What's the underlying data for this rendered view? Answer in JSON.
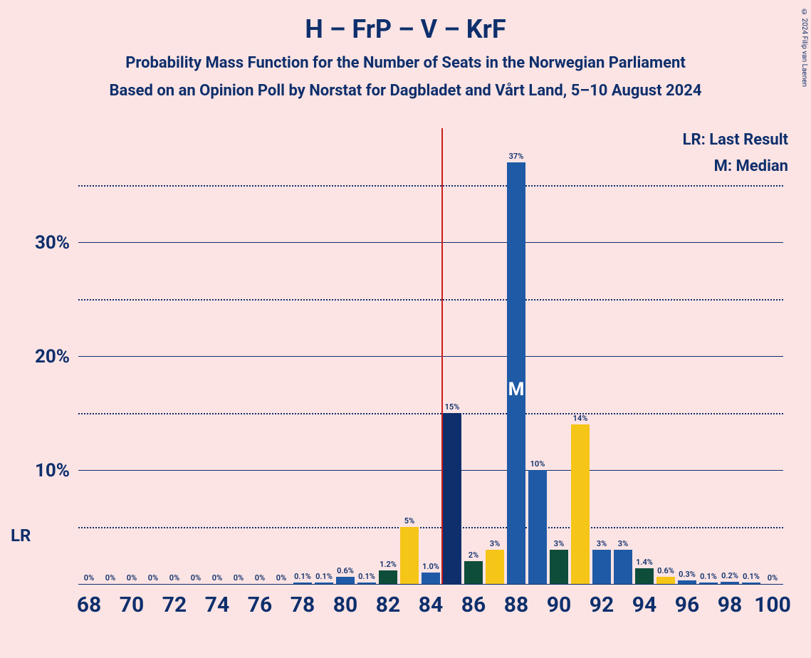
{
  "title": "H – FrP – V – KrF",
  "subtitle1": "Probability Mass Function for the Number of Seats in the Norwegian Parliament",
  "subtitle2": "Based on an Opinion Poll by Norstat for Dagbladet and Vårt Land, 5–10 August 2024",
  "credit": "© 2024 Filip van Laenen",
  "legend": {
    "lr": "LR: Last Result",
    "m": "M: Median"
  },
  "chart": {
    "type": "bar",
    "background_color": "#fce4e4",
    "text_color": "#0e2f6c",
    "lr_line_color": "#c81e1e",
    "lr_position": 68,
    "median_position": 88,
    "ymax": 40,
    "y_major_ticks": [
      10,
      20,
      30
    ],
    "y_minor_ticks": [
      5,
      15,
      25,
      35
    ],
    "x_range": [
      68,
      100
    ],
    "x_ticks": [
      68,
      70,
      72,
      74,
      76,
      78,
      80,
      82,
      84,
      86,
      88,
      90,
      92,
      94,
      96,
      98,
      100
    ],
    "colors": {
      "blue": "#1f5aa6",
      "darkblue": "#0e2f6c",
      "green": "#0e4d3a",
      "yellow": "#f5c518"
    },
    "bars": [
      {
        "x": 68,
        "value": 0,
        "label": "0%",
        "color": "blue"
      },
      {
        "x": 69,
        "value": 0,
        "label": "0%",
        "color": "blue"
      },
      {
        "x": 70,
        "value": 0,
        "label": "0%",
        "color": "blue"
      },
      {
        "x": 71,
        "value": 0,
        "label": "0%",
        "color": "blue"
      },
      {
        "x": 72,
        "value": 0,
        "label": "0%",
        "color": "blue"
      },
      {
        "x": 73,
        "value": 0,
        "label": "0%",
        "color": "blue"
      },
      {
        "x": 74,
        "value": 0,
        "label": "0%",
        "color": "blue"
      },
      {
        "x": 75,
        "value": 0,
        "label": "0%",
        "color": "blue"
      },
      {
        "x": 76,
        "value": 0,
        "label": "0%",
        "color": "blue"
      },
      {
        "x": 77,
        "value": 0,
        "label": "0%",
        "color": "blue"
      },
      {
        "x": 78,
        "value": 0.1,
        "label": "0.1%",
        "color": "blue"
      },
      {
        "x": 79,
        "value": 0.1,
        "label": "0.1%",
        "color": "blue"
      },
      {
        "x": 80,
        "value": 0.6,
        "label": "0.6%",
        "color": "blue"
      },
      {
        "x": 81,
        "value": 0.1,
        "label": "0.1%",
        "color": "blue"
      },
      {
        "x": 82,
        "value": 1.2,
        "label": "1.2%",
        "color": "green"
      },
      {
        "x": 83,
        "value": 5,
        "label": "5%",
        "color": "yellow"
      },
      {
        "x": 84,
        "value": 1.0,
        "label": "1.0%",
        "color": "blue"
      },
      {
        "x": 85,
        "value": 15,
        "label": "15%",
        "color": "darkblue"
      },
      {
        "x": 86,
        "value": 2,
        "label": "2%",
        "color": "green"
      },
      {
        "x": 87,
        "value": 3,
        "label": "3%",
        "color": "yellow"
      },
      {
        "x": 88,
        "value": 37,
        "label": "37%",
        "color": "blue"
      },
      {
        "x": 89,
        "value": 10,
        "label": "10%",
        "color": "blue"
      },
      {
        "x": 90,
        "value": 3,
        "label": "3%",
        "color": "green"
      },
      {
        "x": 91,
        "value": 14,
        "label": "14%",
        "color": "yellow"
      },
      {
        "x": 92,
        "value": 3,
        "label": "3%",
        "color": "blue"
      },
      {
        "x": 93,
        "value": 3,
        "label": "3%",
        "color": "blue"
      },
      {
        "x": 94,
        "value": 1.4,
        "label": "1.4%",
        "color": "green"
      },
      {
        "x": 95,
        "value": 0.6,
        "label": "0.6%",
        "color": "yellow"
      },
      {
        "x": 96,
        "value": 0.3,
        "label": "0.3%",
        "color": "blue"
      },
      {
        "x": 97,
        "value": 0.1,
        "label": "0.1%",
        "color": "blue"
      },
      {
        "x": 98,
        "value": 0.2,
        "label": "0.2%",
        "color": "blue"
      },
      {
        "x": 99,
        "value": 0.1,
        "label": "0.1%",
        "color": "blue"
      },
      {
        "x": 100,
        "value": 0,
        "label": "0%",
        "color": "blue"
      }
    ]
  },
  "lr_marker_text": "LR",
  "m_marker_text": "M"
}
